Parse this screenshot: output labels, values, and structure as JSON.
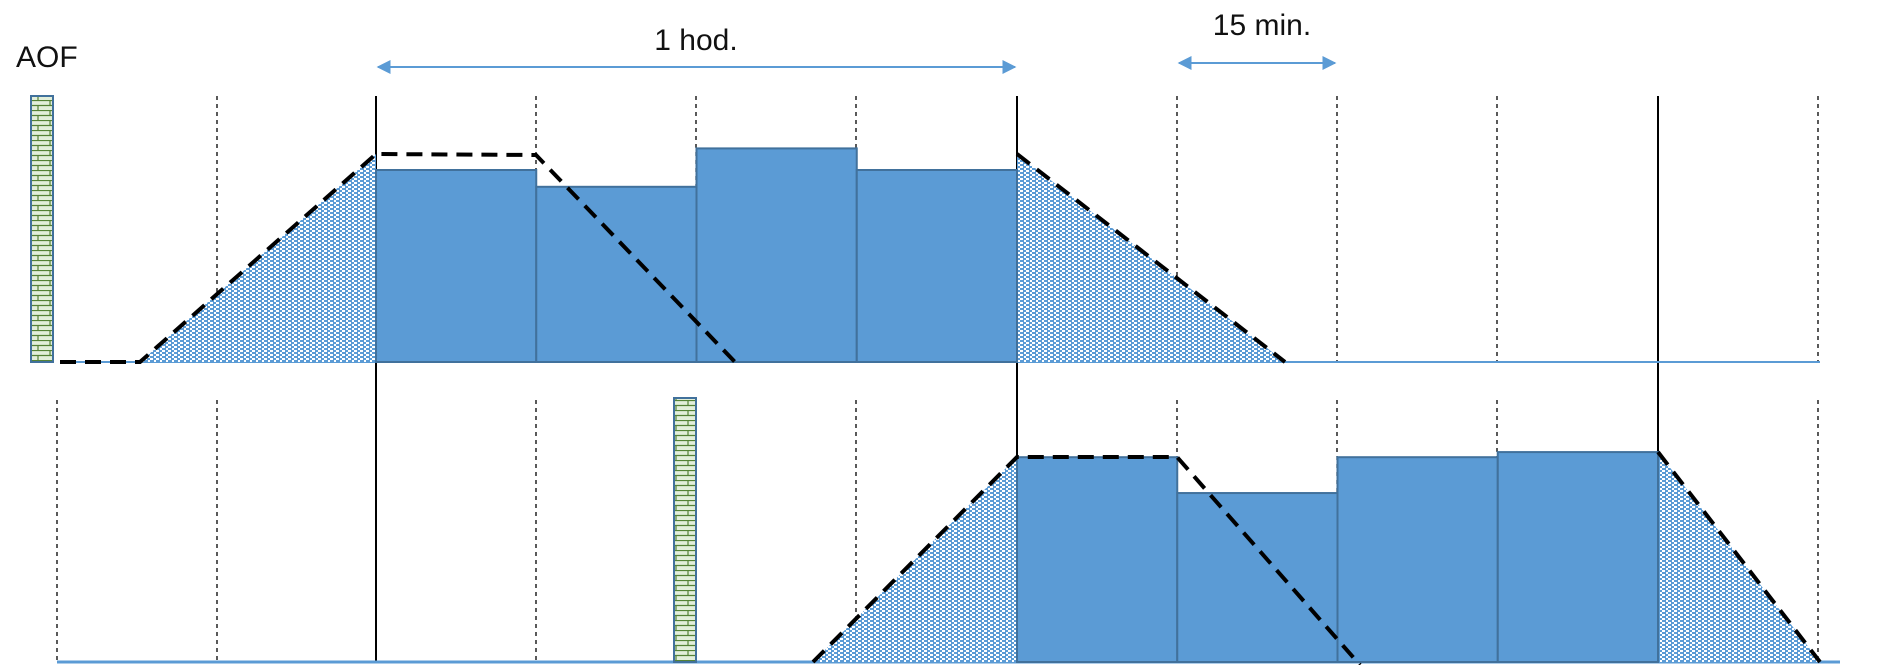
{
  "labels": {
    "aof": "AOF",
    "hour_span": "1 hod.",
    "quarter_span": "15 min."
  },
  "diagram": {
    "interval_minutes": 15,
    "panels": [
      {
        "id": "top",
        "blocks": [
          {
            "start_interval": 0,
            "level": 0.8
          },
          {
            "start_interval": 1,
            "level": 0.73
          },
          {
            "start_interval": 2,
            "level": 0.89
          },
          {
            "start_interval": 3,
            "level": 0.8
          }
        ]
      },
      {
        "id": "bottom",
        "blocks": [
          {
            "start_interval": 0,
            "level": 0.8
          },
          {
            "start_interval": 1,
            "level": 0.66
          },
          {
            "start_interval": 2,
            "level": 0.8
          },
          {
            "start_interval": 3,
            "level": 0.82
          }
        ]
      }
    ]
  },
  "colors": {
    "block_fill": "#5B9BD5",
    "block_stroke": "#41719C",
    "ramp_pattern": "#5B9BD5",
    "aof_marker_fill": "#E2EFDA",
    "aof_marker_line": "#548235",
    "baseline": "#5B9BD5",
    "arrow": "#5B9BD5"
  }
}
